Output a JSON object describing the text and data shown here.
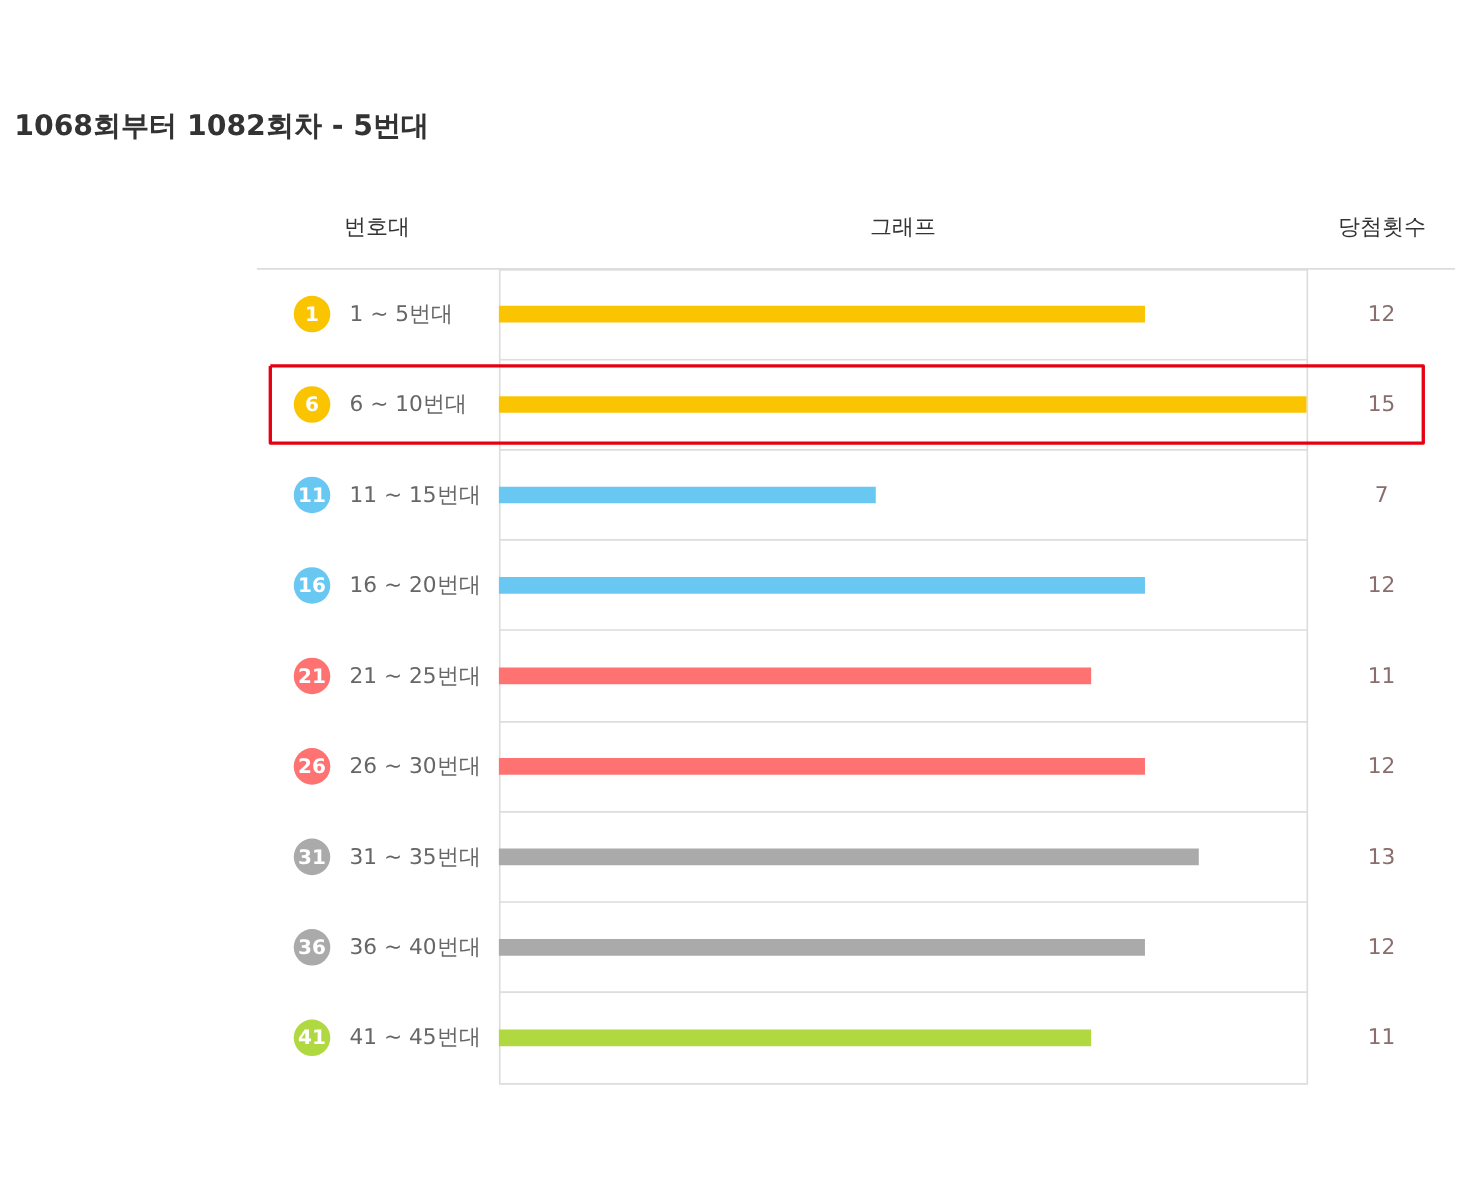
{
  "chart_data": {
    "type": "bar",
    "orientation": "horizontal",
    "title": "1068회부터 1082회차 - 5번대",
    "categories": [
      "1 ~ 5번대",
      "6 ~ 10번대",
      "11 ~ 15번대",
      "16 ~ 20번대",
      "21 ~ 25번대",
      "26 ~ 30번대",
      "31 ~ 35번대",
      "36 ~ 40번대",
      "41 ~ 45번대"
    ],
    "values": [
      12,
      15,
      7,
      12,
      11,
      12,
      13,
      12,
      11
    ],
    "colors": [
      "#fbc400",
      "#fbc400",
      "#69c8f2",
      "#69c8f2",
      "#ff7272",
      "#ff7272",
      "#aaaaaa",
      "#aaaaaa",
      "#b0d840"
    ],
    "xlim": [
      0,
      15
    ],
    "data_labels": true,
    "tick_labels": "y",
    "grid": "y",
    "annotations": [
      "번호대",
      "그래프",
      "당첨횟수",
      "1",
      "6",
      "11",
      "16",
      "21",
      "26",
      "31",
      "36",
      "41"
    ]
  }
}
